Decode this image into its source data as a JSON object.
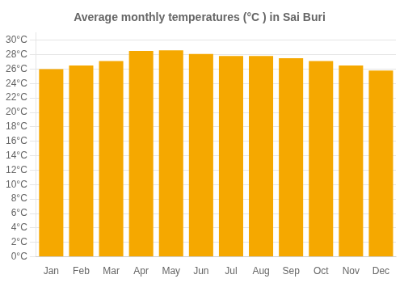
{
  "chart_data": {
    "type": "bar",
    "title": "Average monthly temperatures (°C ) in Sai Buri",
    "categories": [
      "Jan",
      "Feb",
      "Mar",
      "Apr",
      "May",
      "Jun",
      "Jul",
      "Aug",
      "Sep",
      "Oct",
      "Nov",
      "Dec"
    ],
    "values": [
      26.0,
      26.5,
      27.1,
      28.5,
      28.6,
      28.1,
      27.8,
      27.8,
      27.5,
      27.1,
      26.5,
      25.8
    ],
    "color": "#F5A800",
    "ylim": [
      0,
      31
    ],
    "yticks": [
      {
        "value": 0,
        "label": "0°C"
      },
      {
        "value": 2,
        "label": "2°C"
      },
      {
        "value": 4,
        "label": "4°C"
      },
      {
        "value": 6,
        "label": "6°C"
      },
      {
        "value": 8,
        "label": "8°C"
      },
      {
        "value": 10,
        "label": "10°C"
      },
      {
        "value": 12,
        "label": "12°C"
      },
      {
        "value": 14,
        "label": "14°C"
      },
      {
        "value": 16,
        "label": "16°C"
      },
      {
        "value": 18,
        "label": "18°C"
      },
      {
        "value": 20,
        "label": "20°C"
      },
      {
        "value": 22,
        "label": "22°C"
      },
      {
        "value": 24,
        "label": "24°C"
      },
      {
        "value": 26,
        "label": "26°C"
      },
      {
        "value": 28,
        "label": "28°C"
      },
      {
        "value": 30,
        "label": "30°C"
      }
    ],
    "grid": true
  }
}
